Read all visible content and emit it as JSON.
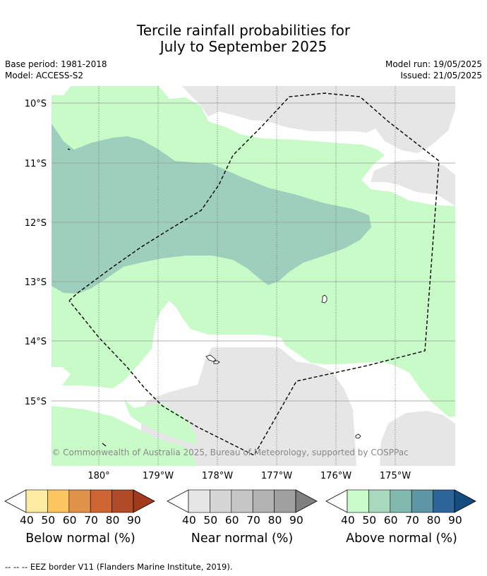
{
  "title": {
    "line1": "Tercile rainfall probabilities for",
    "line2": "July to September 2025"
  },
  "meta": {
    "base_period": "Base period: 1981-2018",
    "model": "Model: ACCESS-S2",
    "model_run": "Model run: 19/05/2025",
    "issued": "Issued: 21/05/2025"
  },
  "map": {
    "lat_labels": [
      "10°S",
      "11°S",
      "12°S",
      "13°S",
      "14°S",
      "15°S"
    ],
    "lon_labels": [
      "180°",
      "179°W",
      "178°W",
      "177°W",
      "176°W",
      "175°W"
    ],
    "copyright": "© Commonwealth of Australia 2025, Bureau of Meteorology, supported by COSPPac",
    "colors": {
      "near_normal_40": "#e6e6e6",
      "above_normal_40": "#c9fbc9",
      "above_normal_50": "#9ecfbc"
    }
  },
  "legends": [
    {
      "title": "Below normal (%)",
      "ticks": [
        "40",
        "50",
        "60",
        "70",
        "80",
        "90"
      ],
      "colors": [
        "#ffffff",
        "#fdeba1",
        "#fdc560",
        "#e0924a",
        "#cf6532",
        "#b04a27",
        "#a23a1d"
      ]
    },
    {
      "title": "Near normal (%)",
      "ticks": [
        "40",
        "50",
        "60",
        "70",
        "80",
        "90"
      ],
      "colors": [
        "#ffffff",
        "#e6e6e6",
        "#d6d6d6",
        "#c6c6c6",
        "#b3b3b3",
        "#a0a0a0",
        "#7f7f7f"
      ]
    },
    {
      "title": "Above normal (%)",
      "ticks": [
        "40",
        "50",
        "60",
        "70",
        "80",
        "90"
      ],
      "colors": [
        "#ffffff",
        "#c9fbcb",
        "#a9d9bd",
        "#81b9ae",
        "#5e96a5",
        "#2d6499",
        "#134c7f"
      ]
    }
  ],
  "footer": "--  --  -- EEZ border V11 (Flanders Marine Institute, 2019)."
}
